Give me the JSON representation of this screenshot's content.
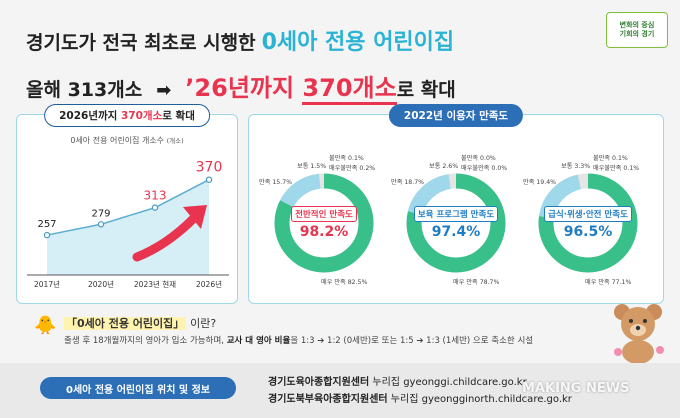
{
  "headline": {
    "line1_prefix": "경기도가 전국 최초로 시행한",
    "line1_highlight": "0세아 전용 어린이집",
    "line2_prefix": "올해 313개소",
    "line2_arrow": "➡",
    "line2_big_year": "’26년까지",
    "line2_big_count": "370개소",
    "line2_tail": "로 확대"
  },
  "logo": {
    "line1": "변화의 중심",
    "line2": "기회의 경기"
  },
  "left_card": {
    "pill_prefix": "2026년까지",
    "pill_accent": "370개소",
    "pill_suffix": "로 확대",
    "chart_sub": "0세아 전용 어린이집 개소수",
    "chart_unit": "(개소)"
  },
  "right_card": {
    "pill": "2022년 이용자 만족도"
  },
  "donuts": [
    {
      "label": "전반적인 만족도",
      "pct": "98.2%",
      "color": "#e8344e",
      "ann_very": "매우 만족 82.5%",
      "ann_sat": "만족 15.7%",
      "ann_norm": "보통 1.5%",
      "ann_dis": "불만족 0.1%",
      "ann_vdis": "매우불만족 0.2%"
    },
    {
      "label": "보육 프로그램 만족도",
      "pct": "97.4%",
      "color": "#1f7dc4",
      "ann_very": "매우 만족 78.7%",
      "ann_sat": "만족 18.7%",
      "ann_norm": "보통 2.6%",
      "ann_dis": "불만족 0.0%",
      "ann_vdis": "매우불만족 0.0%"
    },
    {
      "label": "급식·위생·안전 만족도",
      "pct": "96.5%",
      "color": "#1f7dc4",
      "ann_very": "매우 만족 77.1%",
      "ann_sat": "만족 19.4%",
      "ann_norm": "보통 3.3%",
      "ann_dis": "불만족 0.1%",
      "ann_vdis": "매우불만족 0.1%"
    }
  ],
  "what": {
    "title_hl": "「0세아 전용 어린이집」",
    "title_rest": "이란?",
    "desc_prefix": "출생 후 18개월까지의 영아가 입소 가능하며,",
    "desc_bold": "교사 대 영아 비율",
    "desc_suffix": "을 1:3 ➔ 1:2 (0세반)로 또는 1:5 ➔ 1:3 (1세반) 으로 축소한 시설"
  },
  "bottom": {
    "button": "0세아 전용 어린이집 위치 및 정보",
    "link1_name": "경기도육아종합지원센터",
    "link1_label": "누리집",
    "link1_url": "gyeonggi.childcare.go.kr",
    "link2_name": "경기도북부육아종합지원센터",
    "link2_label": "누리집",
    "link2_url": "gyeongginorth.childcare.go.kr"
  },
  "watermark": "MAKING NEWS",
  "colors": {
    "accent_red": "#e8344e",
    "accent_blue": "#2c6fb7",
    "donut_green": "#39c08a",
    "line_blue": "#2ab3d4"
  },
  "chart_data": {
    "type": "line",
    "title": "0세아 전용 어린이집 개소수",
    "ylabel": "(개소)",
    "categories": [
      "2017년",
      "2020년",
      "2023년 현재",
      "2026년"
    ],
    "values": [
      257,
      279,
      313,
      370
    ],
    "ylim": [
      200,
      400
    ]
  }
}
